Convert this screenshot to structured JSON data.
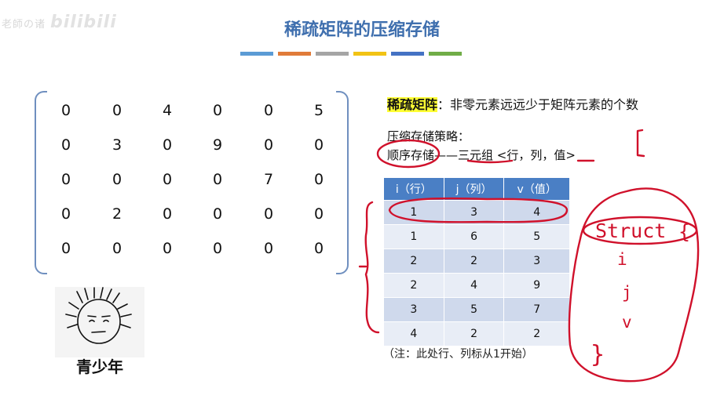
{
  "watermark": {
    "text": "老師の诸",
    "brand": "bilibili"
  },
  "slide": {
    "title": "稀疏矩阵的压缩存储"
  },
  "stripes": [
    "#5b9bd5",
    "#e07b39",
    "#a5a5a5",
    "#f2c314",
    "#4472c4",
    "#70ad47"
  ],
  "matrix": {
    "rows": [
      [
        "0",
        "0",
        "4",
        "0",
        "0",
        "5"
      ],
      [
        "0",
        "3",
        "0",
        "9",
        "0",
        "0"
      ],
      [
        "0",
        "0",
        "0",
        "0",
        "7",
        "0"
      ],
      [
        "0",
        "2",
        "0",
        "0",
        "0",
        "0"
      ],
      [
        "0",
        "0",
        "0",
        "0",
        "0",
        "0"
      ]
    ]
  },
  "definition": {
    "term": "稀疏矩阵",
    "text": "：非零元素远远少于矩阵元素的个数"
  },
  "strategy": {
    "label": "压缩存储策略："
  },
  "order": {
    "term": "顺序存储",
    "dash": "——",
    "text": "三元组 <行，列，值>"
  },
  "table": {
    "headers": [
      "i（行）",
      "j（列）",
      "v（值）"
    ],
    "rows": [
      [
        "1",
        "3",
        "4"
      ],
      [
        "1",
        "6",
        "5"
      ],
      [
        "2",
        "2",
        "3"
      ],
      [
        "2",
        "4",
        "9"
      ],
      [
        "3",
        "5",
        "7"
      ],
      [
        "4",
        "2",
        "2"
      ]
    ]
  },
  "note": "（注：此处行、列标从1开始）",
  "face": {
    "label": "青少年"
  },
  "annotations": {
    "word": "Struct",
    "brace": "{",
    "var1": "i",
    "var2": "j",
    "var3": "v",
    "close": "}",
    "bracket": "["
  }
}
